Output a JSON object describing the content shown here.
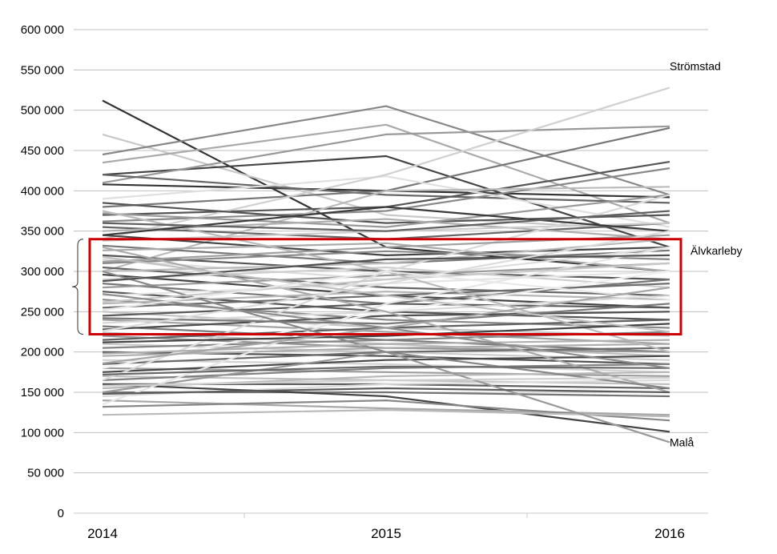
{
  "chart_data": {
    "type": "line",
    "title": "",
    "xlabel": "",
    "ylabel": "",
    "x": [
      "2014",
      "2015",
      "2016"
    ],
    "ylim": [
      0,
      600000
    ],
    "yticks": [
      0,
      50000,
      100000,
      150000,
      200000,
      250000,
      300000,
      350000,
      400000,
      450000,
      500000,
      550000,
      600000
    ],
    "ytick_labels": [
      "0",
      "50 000",
      "100 000",
      "150 000",
      "200 000",
      "250 000",
      "300 000",
      "350 000",
      "400 000",
      "450 000",
      "500 000",
      "550 000",
      "600 000"
    ],
    "grid": true,
    "legend": "none",
    "highlight_range": [
      222000,
      340000
    ],
    "highlight_color": "#cc0000",
    "annotations": [
      {
        "label": "Strömstad",
        "x": "2016",
        "y": 528000
      },
      {
        "label": "Älvkarleby",
        "x": "2016",
        "y": 326000
      },
      {
        "label": "Malå",
        "x": "2016",
        "y": 88000
      }
    ],
    "series": [
      {
        "values": [
          512000,
          330000,
          300000
        ],
        "color": "#333333"
      },
      {
        "values": [
          470000,
          370000,
          350000
        ],
        "color": "#c8c8c8"
      },
      {
        "values": [
          445000,
          505000,
          395000
        ],
        "color": "#888888"
      },
      {
        "values": [
          435000,
          482000,
          360000
        ],
        "color": "#aaaaaa"
      },
      {
        "values": [
          420000,
          443000,
          330000
        ],
        "color": "#444444"
      },
      {
        "values": [
          410000,
          470000,
          480000
        ],
        "color": "#999999"
      },
      {
        "values": [
          408000,
          400000,
          392000
        ],
        "color": "#333333"
      },
      {
        "values": [
          420000,
          395000,
          385000
        ],
        "color": "#666666"
      },
      {
        "values": [
          380000,
          400000,
          478000
        ],
        "color": "#777777"
      },
      {
        "values": [
          370000,
          380000,
          436000
        ],
        "color": "#555555"
      },
      {
        "values": [
          362000,
          375000,
          428000
        ],
        "color": "#888888"
      },
      {
        "values": [
          390000,
          418000,
          355000
        ],
        "color": "#e0e0e0"
      },
      {
        "values": [
          340000,
          420000,
          528000
        ],
        "color": "#d0d0d0"
      },
      {
        "values": [
          300000,
          400000,
          405000
        ],
        "color": "#bbbbbb"
      },
      {
        "values": [
          385000,
          360000,
          370000
        ],
        "color": "#555555"
      },
      {
        "values": [
          372000,
          355000,
          395000
        ],
        "color": "#999999"
      },
      {
        "values": [
          355000,
          340000,
          360000
        ],
        "color": "#666666"
      },
      {
        "values": [
          350000,
          365000,
          340000
        ],
        "color": "#b0b0b0"
      },
      {
        "values": [
          345000,
          320000,
          330000
        ],
        "color": "#444444"
      },
      {
        "values": [
          338000,
          350000,
          360000
        ],
        "color": "#cccccc"
      },
      {
        "values": [
          332000,
          310000,
          326000
        ],
        "color": "#777777"
      },
      {
        "values": [
          326000,
          335000,
          300000
        ],
        "color": "#aaaaaa"
      },
      {
        "values": [
          320000,
          300000,
          290000
        ],
        "color": "#555555"
      },
      {
        "values": [
          315000,
          290000,
          330000
        ],
        "color": "#dddddd"
      },
      {
        "values": [
          310000,
          325000,
          315000
        ],
        "color": "#888888"
      },
      {
        "values": [
          305000,
          280000,
          270000
        ],
        "color": "#666666"
      },
      {
        "values": [
          300000,
          310000,
          340000
        ],
        "color": "#bbbbbb"
      },
      {
        "values": [
          296000,
          270000,
          255000
        ],
        "color": "#444444"
      },
      {
        "values": [
          290000,
          305000,
          280000
        ],
        "color": "#cfcfcf"
      },
      {
        "values": [
          285000,
          260000,
          290000
        ],
        "color": "#777777"
      },
      {
        "values": [
          280000,
          295000,
          310000
        ],
        "color": "#999999"
      },
      {
        "values": [
          275000,
          250000,
          240000
        ],
        "color": "#555555"
      },
      {
        "values": [
          270000,
          285000,
          300000
        ],
        "color": "#e4e4e4"
      },
      {
        "values": [
          265000,
          240000,
          230000
        ],
        "color": "#8a8a8a"
      },
      {
        "values": [
          260000,
          275000,
          265000
        ],
        "color": "#b5b5b5"
      },
      {
        "values": [
          255000,
          270000,
          285000
        ],
        "color": "#6e6e6e"
      },
      {
        "values": [
          250000,
          230000,
          220000
        ],
        "color": "#c4c4c4"
      },
      {
        "values": [
          245000,
          260000,
          255000
        ],
        "color": "#5a5a5a"
      },
      {
        "values": [
          240000,
          225000,
          210000
        ],
        "color": "#a3a3a3"
      },
      {
        "values": [
          236000,
          250000,
          270000
        ],
        "color": "#d8d8d8"
      },
      {
        "values": [
          232000,
          215000,
          200000
        ],
        "color": "#7a7a7a"
      },
      {
        "values": [
          228000,
          245000,
          250000
        ],
        "color": "#4e4e4e"
      },
      {
        "values": [
          224000,
          210000,
          195000
        ],
        "color": "#bdbdbd"
      },
      {
        "values": [
          220000,
          205000,
          200000
        ],
        "color": "#949494"
      },
      {
        "values": [
          215000,
          230000,
          240000
        ],
        "color": "#606060"
      },
      {
        "values": [
          210000,
          200000,
          190000
        ],
        "color": "#cbcbcb"
      },
      {
        "values": [
          205000,
          215000,
          225000
        ],
        "color": "#848484"
      },
      {
        "values": [
          200000,
          195000,
          185000
        ],
        "color": "#525252"
      },
      {
        "values": [
          195000,
          205000,
          210000
        ],
        "color": "#adadad"
      },
      {
        "values": [
          190000,
          185000,
          175000
        ],
        "color": "#d2d2d2"
      },
      {
        "values": [
          185000,
          200000,
          205000
        ],
        "color": "#6a6a6a"
      },
      {
        "values": [
          180000,
          175000,
          170000
        ],
        "color": "#9c9c9c"
      },
      {
        "values": [
          175000,
          190000,
          195000
        ],
        "color": "#484848"
      },
      {
        "values": [
          170000,
          165000,
          160000
        ],
        "color": "#c0c0c0"
      },
      {
        "values": [
          165000,
          180000,
          185000
        ],
        "color": "#808080"
      },
      {
        "values": [
          160000,
          160000,
          155000
        ],
        "color": "#5e5e5e"
      },
      {
        "values": [
          155000,
          170000,
          175000
        ],
        "color": "#b8b8b8"
      },
      {
        "values": [
          150000,
          150000,
          145000
        ],
        "color": "#747474"
      },
      {
        "values": [
          145000,
          160000,
          165000
        ],
        "color": "#dadada"
      },
      {
        "values": [
          160000,
          145000,
          101000
        ],
        "color": "#444444"
      },
      {
        "values": [
          140000,
          130000,
          122000
        ],
        "color": "#a8a8a8"
      },
      {
        "values": [
          132000,
          140000,
          115000
        ],
        "color": "#888888"
      },
      {
        "values": [
          122000,
          128000,
          120000
        ],
        "color": "#bbbbbb"
      },
      {
        "values": [
          150000,
          200000,
          88000
        ],
        "color": "#999999"
      },
      {
        "values": [
          135000,
          260000,
          330000
        ],
        "color": "#e6e6e6"
      },
      {
        "values": [
          165000,
          300000,
          395000
        ],
        "color": "#d9d9d9"
      },
      {
        "values": [
          180000,
          250000,
          300000
        ],
        "color": "#f0f0f0"
      },
      {
        "values": [
          330000,
          250000,
          150000
        ],
        "color": "#aaaaaa"
      },
      {
        "values": [
          375000,
          300000,
          200000
        ],
        "color": "#bbbbbb"
      },
      {
        "values": [
          300000,
          200000,
          155000
        ],
        "color": "#888888"
      },
      {
        "values": [
          345000,
          380000,
          350000
        ],
        "color": "#3a3a3a"
      },
      {
        "values": [
          360000,
          350000,
          375000
        ],
        "color": "#606060"
      },
      {
        "values": [
          312000,
          330000,
          345000
        ],
        "color": "#a0a0a0"
      },
      {
        "values": [
          288000,
          315000,
          320000
        ],
        "color": "#505050"
      },
      {
        "values": [
          262000,
          290000,
          310000
        ],
        "color": "#c8c8c8"
      },
      {
        "values": [
          242000,
          235000,
          260000
        ],
        "color": "#787878"
      },
      {
        "values": [
          212000,
          220000,
          235000
        ],
        "color": "#444444"
      },
      {
        "values": [
          198000,
          210000,
          215000
        ],
        "color": "#b0b0b0"
      },
      {
        "values": [
          172000,
          182000,
          180000
        ],
        "color": "#686868"
      },
      {
        "values": [
          158000,
          165000,
          168000
        ],
        "color": "#d0d0d0"
      },
      {
        "values": [
          148000,
          155000,
          150000
        ],
        "color": "#5c5c5c"
      },
      {
        "values": [
          226000,
          285000,
          350000
        ],
        "color": "#dcdcdc"
      },
      {
        "values": [
          272000,
          230000,
          180000
        ],
        "color": "#8c8c8c"
      },
      {
        "values": [
          318000,
          270000,
          225000
        ],
        "color": "#c2c2c2"
      },
      {
        "values": [
          252000,
          300000,
          265000
        ],
        "color": "#e8e8e8"
      },
      {
        "values": [
          186000,
          230000,
          280000
        ],
        "color": "#a6a6a6"
      }
    ]
  }
}
